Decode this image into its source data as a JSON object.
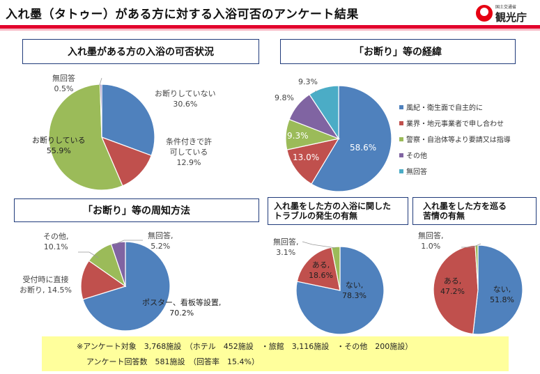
{
  "header": {
    "title": "入れ墨（タトゥー）がある方に対する入浴可否のアンケート結果",
    "ministry": "国土交通省",
    "agency": "観光庁"
  },
  "chart_data": [
    {
      "type": "pie",
      "title": "入れ墨がある方の入浴の可否状況",
      "slices": [
        {
          "name": "お断りしていない",
          "value": 30.6,
          "label": "30.6%",
          "color": "#4f81bd"
        },
        {
          "name": "条件付きで許可している",
          "value": 12.9,
          "label": "12.9%",
          "color": "#c0504d"
        },
        {
          "name": "お断りしている",
          "value": 55.9,
          "label": "55.9%",
          "color": "#9bbb59"
        },
        {
          "name": "無回答",
          "value": 0.5,
          "label": "0.5%",
          "color": "#8064a2"
        }
      ]
    },
    {
      "type": "pie",
      "title": "「お断り」等の経緯",
      "slices": [
        {
          "name": "風紀・衛生面で自主的に",
          "value": 58.6,
          "label": "58.6%",
          "color": "#4f81bd"
        },
        {
          "name": "業界・地元事業者で申し合わせ",
          "value": 13.0,
          "label": "13.0%",
          "color": "#c0504d"
        },
        {
          "name": "警察・自治体等より要請又は指導",
          "value": 9.3,
          "label": "9.3%",
          "color": "#9bbb59"
        },
        {
          "name": "その他",
          "value": 9.8,
          "label": "9.8%",
          "color": "#8064a2"
        },
        {
          "name": "無回答",
          "value": 9.3,
          "label": "9.3%",
          "color": "#4bacc6"
        }
      ],
      "legend": "right"
    },
    {
      "type": "pie",
      "title": "「お断り」等の周知方法",
      "slices": [
        {
          "name": "ポスター、看板等設置,",
          "value": 70.2,
          "label": "70.2%",
          "color": "#4f81bd"
        },
        {
          "name": "受付時に直接お断り,",
          "value": 14.5,
          "label": "14.5%",
          "color": "#c0504d"
        },
        {
          "name": "その他,",
          "value": 10.1,
          "label": "10.1%",
          "color": "#9bbb59"
        },
        {
          "name": "無回答,",
          "value": 5.2,
          "label": "5.2%",
          "color": "#8064a2"
        }
      ]
    },
    {
      "type": "pie",
      "title": "入れ墨をした方の入浴に関したトラブルの発生の有無",
      "slices": [
        {
          "name": "ない,",
          "value": 78.3,
          "label": "78.3%",
          "color": "#4f81bd"
        },
        {
          "name": "ある,",
          "value": 18.6,
          "label": "18.6%",
          "color": "#c0504d"
        },
        {
          "name": "無回答,",
          "value": 3.1,
          "label": "3.1%",
          "color": "#9bbb59"
        }
      ]
    },
    {
      "type": "pie",
      "title": "入れ墨をした方を巡る苦情の有無",
      "slices": [
        {
          "name": "ない,",
          "value": 51.8,
          "label": "51.8%",
          "color": "#4f81bd"
        },
        {
          "name": "ある,",
          "value": 47.2,
          "label": "47.2%",
          "color": "#c0504d"
        },
        {
          "name": "無回答,",
          "value": 1.0,
          "label": "1.0%",
          "color": "#9bbb59"
        }
      ]
    }
  ],
  "titles": {
    "t4a": "入れ墨をした方の入浴に関した",
    "t4b": "トラブルの発生の有無",
    "t5a": "入れ墨をした方を巡る",
    "t5b": "苦情の有無"
  },
  "labels": {
    "c1_a": "お断りしていない",
    "c1_b": "条件付きで許",
    "c1_b2": "可している",
    "c1_c": "お断りしている",
    "c1_d": "無回答",
    "c3_a": "ポスター、看板等設置,",
    "c3_b": "受付時に直接",
    "c3_b2": "お断り,",
    "c3_c": "その他,",
    "c3_d": "無回答,",
    "c4_a": "ない,",
    "c4_b": "ある,",
    "c4_c": "無回答,",
    "c5_a": "ない,",
    "c5_b": "ある,",
    "c5_c": "無回答,"
  },
  "note": {
    "line1": "※アンケート対象　3,768施設　（ホテル　452施設　・旅館　3,116施設　・その他　200施設）",
    "line2": "アンケート回答数　581施設　（回答率　15.4%）"
  }
}
